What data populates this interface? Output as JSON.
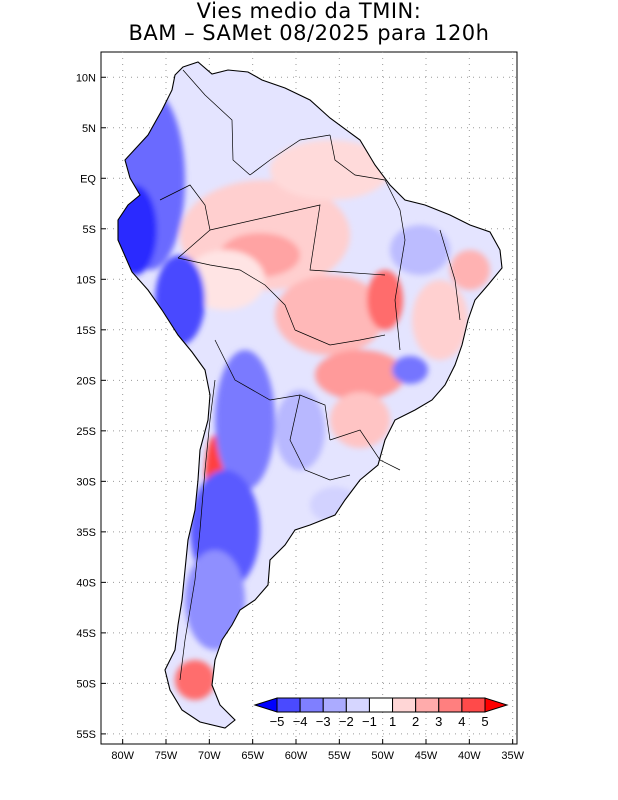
{
  "title": {
    "line1": "Vies medio da TMIN:",
    "line2": "BAM – SAMet 08/2025  para 120h"
  },
  "axes": {
    "lon_labels": [
      "80W",
      "75W",
      "70W",
      "65W",
      "60W",
      "55W",
      "50W",
      "45W",
      "40W",
      "35W"
    ],
    "lon_values": [
      -80,
      -75,
      -70,
      -65,
      -60,
      -55,
      -50,
      -45,
      -40,
      -35
    ],
    "lat_labels": [
      "10N",
      "5N",
      "EQ",
      "5S",
      "10S",
      "15S",
      "20S",
      "25S",
      "30S",
      "35S",
      "40S",
      "45S",
      "50S",
      "55S"
    ],
    "lat_values": [
      10,
      5,
      0,
      -5,
      -10,
      -15,
      -20,
      -25,
      -30,
      -35,
      -40,
      -45,
      -50,
      -55
    ],
    "lon_range": [
      -82.5,
      -34.5
    ],
    "lat_range": [
      -56,
      12.5
    ]
  },
  "colorbar": {
    "labels": [
      "−5",
      "−4",
      "−3",
      "−2",
      "−1",
      "1",
      "2",
      "3",
      "4",
      "5"
    ],
    "colors": [
      "#0000ff",
      "#4a4aff",
      "#7f7fff",
      "#ababff",
      "#d6d6ff",
      "#ffffff",
      "#ffd6d6",
      "#ffabab",
      "#ff7f7f",
      "#ff4a4a",
      "#ff0000"
    ]
  },
  "colors": {
    "land_edge": "#000000",
    "grid": "#9a9a9a",
    "warm": "#ff8f8f",
    "cold": "#3a3aff"
  }
}
